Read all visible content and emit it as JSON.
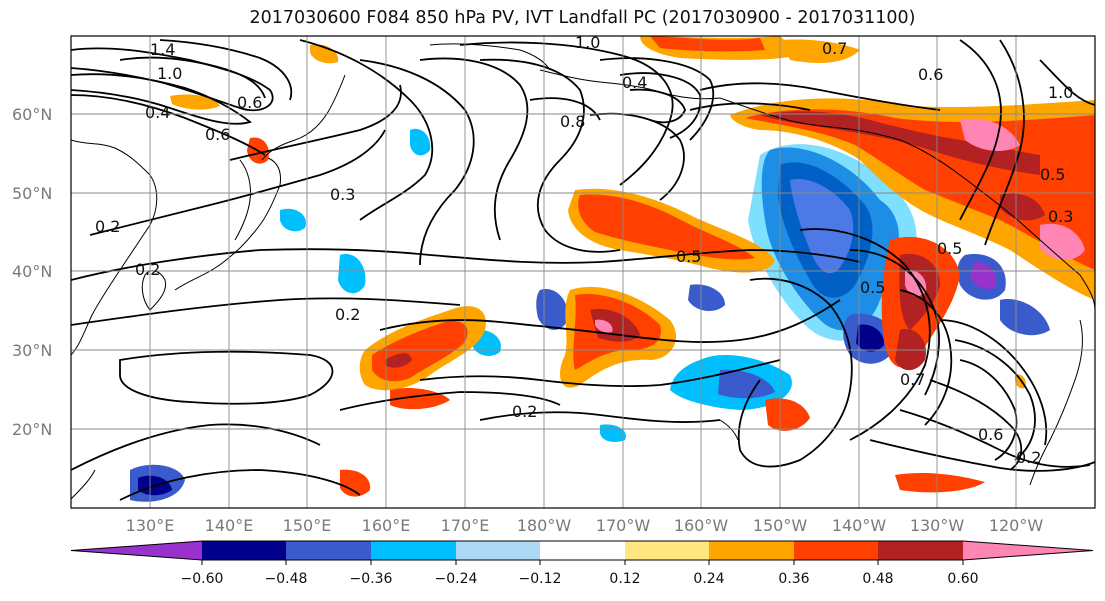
{
  "figure": {
    "title": "2017030600 F084 850 hPa PV, IVT Landfall PC (2017030900 - 2017031100)"
  },
  "axes": {
    "lat_labels": [
      "60°N",
      "50°N",
      "40°N",
      "30°N",
      "20°N"
    ],
    "lon_labels": [
      "130°E",
      "140°E",
      "150°E",
      "160°E",
      "170°E",
      "180°W",
      "170°W",
      "160°W",
      "150°W",
      "140°W",
      "130°W",
      "120°W"
    ]
  },
  "colorbar": {
    "tick_labels": [
      "−0.60",
      "−0.48",
      "−0.36",
      "−0.24",
      "−0.12",
      "0.12",
      "0.24",
      "0.36",
      "0.48",
      "0.60"
    ],
    "colors": [
      "#9932cc",
      "#00008b",
      "#3a5bcc",
      "#00bfff",
      "#add8f6",
      "#ffffff",
      "#ffe680",
      "#ffa500",
      "#ff4000",
      "#b22222",
      "#ff85b5"
    ]
  },
  "contour_labels": [
    "1.4",
    "1.0",
    "1.0",
    "0.6",
    "0.4",
    "0.6",
    "0.3",
    "0.2",
    "0.2",
    "0.2",
    "0.2",
    "0.5",
    "0.5",
    "0.8",
    "0.4",
    "0.7",
    "0.6",
    "0.5",
    "0.7",
    "0.6",
    "0.2",
    "1.0",
    "0.5",
    "0.3"
  ]
}
